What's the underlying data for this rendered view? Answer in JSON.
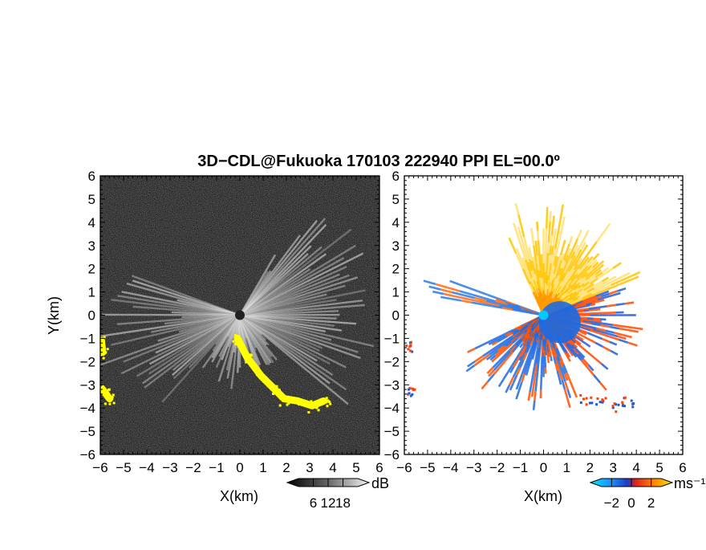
{
  "title": "3D−CDL@Fukuoka 170103 222940 PPI EL=00.0º",
  "colors": {
    "background": "#ffffff",
    "dark_field": "#2b2b2b",
    "echo_yellow": "#ffff00",
    "velocity_away": "#ff5a00",
    "velocity_toward": "#1e6ae0",
    "velocity_near": "#00c0ff",
    "velocity_high": "#ffcc00"
  },
  "chart_data": [
    {
      "name": "reflectivity-panel",
      "type": "heatmap",
      "xlabel": "X(km)",
      "ylabel": "Y(km)",
      "xlim": [
        -6,
        6
      ],
      "ylim": [
        -6,
        6
      ],
      "xticks": [
        "−6",
        "−5",
        "−4",
        "−3",
        "−2",
        "−1",
        "0",
        "1",
        "2",
        "3",
        "4",
        "5",
        "6"
      ],
      "yticks": [
        "6",
        "5",
        "4",
        "3",
        "2",
        "1",
        "0",
        "−1",
        "−2",
        "−3",
        "−4",
        "−5",
        "−6"
      ],
      "colorbar": {
        "unit": "dB",
        "ticks": [
          "6",
          "12",
          "18"
        ],
        "range": [
          0,
          24
        ]
      },
      "features": [
        {
          "kind": "echo_band",
          "color": "yellow",
          "points": [
            [
              -0.1,
              -1.0
            ],
            [
              0.3,
              -1.8
            ],
            [
              0.9,
              -2.6
            ],
            [
              1.5,
              -3.2
            ],
            [
              1.9,
              -3.6
            ],
            [
              2.5,
              -3.7
            ],
            [
              3.1,
              -3.9
            ],
            [
              3.6,
              -3.7
            ]
          ]
        },
        {
          "kind": "echo_patch",
          "color": "yellow",
          "points": [
            [
              -5.9,
              -3.2
            ],
            [
              -5.6,
              -3.6
            ]
          ]
        },
        {
          "kind": "echo_patch",
          "color": "yellow",
          "points": [
            [
              -5.95,
              -1.1
            ],
            [
              -5.9,
              -1.6
            ]
          ]
        }
      ]
    },
    {
      "name": "velocity-panel",
      "type": "heatmap",
      "xlabel": "X(km)",
      "ylabel": "",
      "xlim": [
        -6,
        6
      ],
      "ylim": [
        -6,
        6
      ],
      "xticks": [
        "−6",
        "−5",
        "−4",
        "−3",
        "−2",
        "−1",
        "0",
        "1",
        "2",
        "3",
        "4",
        "5",
        "6"
      ],
      "yticks": [
        "6",
        "5",
        "4",
        "3",
        "2",
        "1",
        "0",
        "−1",
        "−2",
        "−3",
        "−4",
        "−5",
        "−6"
      ],
      "colorbar": {
        "unit": "ms⁻¹",
        "ticks": [
          "−2",
          "0",
          "2"
        ],
        "range": [
          -3,
          3
        ]
      },
      "features": [
        {
          "kind": "toward_core",
          "color": "blue",
          "center": [
            0.7,
            -0.3
          ],
          "radius_km": 0.9
        },
        {
          "kind": "away_region",
          "color": "orange",
          "sector_deg": [
            20,
            110
          ]
        },
        {
          "kind": "echo_band",
          "color": "mixed",
          "points": [
            [
              1.8,
              -3.6
            ],
            [
              2.5,
              -3.7
            ],
            [
              3.1,
              -3.9
            ],
            [
              3.6,
              -3.7
            ]
          ]
        }
      ]
    }
  ]
}
